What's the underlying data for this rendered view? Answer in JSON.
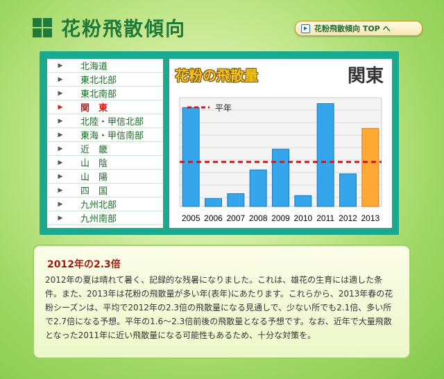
{
  "header": {
    "title": "花粉飛散傾向",
    "top_link": "花粉飛散傾向 TOP へ"
  },
  "regions": [
    {
      "label": "北海道"
    },
    {
      "label": "東北北部"
    },
    {
      "label": "東北南部"
    },
    {
      "label": "関　東",
      "active": true
    },
    {
      "label": "北陸・甲信北部"
    },
    {
      "label": "東海・甲信南部"
    },
    {
      "label": "近　畿"
    },
    {
      "label": "山　陰"
    },
    {
      "label": "山　陽"
    },
    {
      "label": "四　国"
    },
    {
      "label": "九州北部"
    },
    {
      "label": "九州南部"
    }
  ],
  "chart": {
    "title": "花粉の飛散量",
    "region": "関東",
    "legend_label": "平年"
  },
  "chart_data": {
    "type": "bar",
    "title": "花粉の飛散量",
    "categories": [
      "2005",
      "2006",
      "2007",
      "2008",
      "2009",
      "2010",
      "2011",
      "2012",
      "2013"
    ],
    "values": [
      100,
      8,
      13,
      37,
      58,
      11,
      104,
      33,
      79
    ],
    "reference_line": 45,
    "ylim": [
      0,
      110
    ],
    "bar_color": "#35a6ec",
    "highlight_color": "#ffa834",
    "highlight_index": 8,
    "reference_color": "#cc1a1a",
    "grid": true
  },
  "article": {
    "heading": "2012年の2.3倍",
    "body": "2012年の夏は晴れて暑く、記録的な残暑になりました。これは、雄花の生育には適した条件。また、2013年は花粉の飛散量が多い年(表年)にあたります。これらから、2013年春の花粉シーズンは、平均で2012年の2.3倍の飛散量になる見通しで、少ない所でも2.1倍、多い所で2.7倍になる予想。平年の1.6〜2.3倍前後の飛散量となる予想です。なお、近年で大量飛散となった2011年に近い飛散量になる可能性もあるため、十分な対策を。"
  }
}
